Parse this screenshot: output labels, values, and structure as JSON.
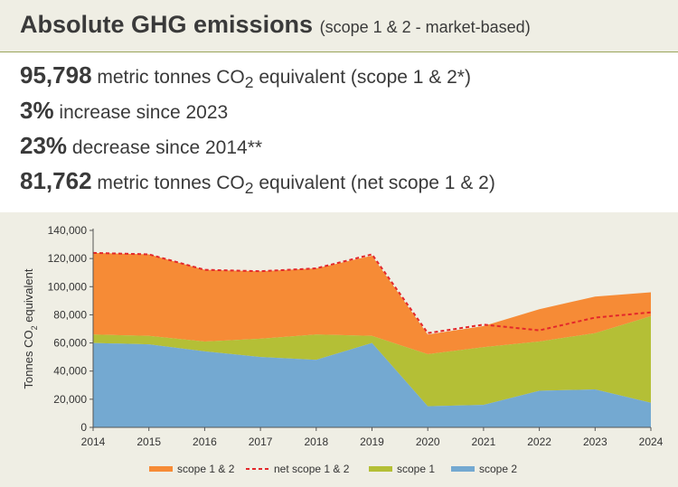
{
  "header": {
    "title": "Absolute GHG emissions",
    "subtitle": "(scope 1 & 2 - market-based)"
  },
  "stats": [
    {
      "value": "95,798",
      "pre": "metric tonnes CO",
      "sub": "2",
      "post": " equivalent (scope 1 & 2*)"
    },
    {
      "value": "3%",
      "pre": "increase since 2023",
      "sub": "",
      "post": ""
    },
    {
      "value": "23%",
      "pre": "decrease since 2014**",
      "sub": "",
      "post": ""
    },
    {
      "value": "81,762",
      "pre": "metric tonnes CO",
      "sub": "2",
      "post": " equivalent (net scope 1 & 2)"
    }
  ],
  "colors": {
    "scope12": "#f68b36",
    "net": "#e3272b",
    "scope1": "#b4bf36",
    "scope2": "#74a9d1",
    "panel": "#efeee4"
  },
  "chart_data": {
    "type": "area",
    "x": [
      "2014",
      "2015",
      "2016",
      "2017",
      "2018",
      "2019",
      "2020",
      "2021",
      "2022",
      "2023",
      "2024"
    ],
    "ylabel_pre": "Tonnes CO",
    "ylabel_sub": "2",
    "ylabel_post": " equivalent",
    "ylim": [
      0,
      140000
    ],
    "yticks": [
      "0",
      "20,000",
      "40,000",
      "60,000",
      "80,000",
      "100,000",
      "120,000",
      "140,000"
    ],
    "grid": false,
    "legend_position": "bottom",
    "series": [
      {
        "name": "scope 1 & 2",
        "style": "area",
        "values": [
          124000,
          123000,
          112000,
          111000,
          113000,
          122000,
          66000,
          72000,
          84000,
          93000,
          96000
        ]
      },
      {
        "name": "net scope 1 & 2",
        "style": "dashed-line",
        "values": [
          124000,
          123000,
          112000,
          111000,
          113000,
          123000,
          67000,
          73000,
          69000,
          78000,
          81762
        ]
      },
      {
        "name": "scope 1",
        "style": "area",
        "values": [
          66000,
          65000,
          61000,
          63000,
          66000,
          65000,
          52000,
          57000,
          61000,
          67000,
          79000
        ]
      },
      {
        "name": "scope 2",
        "style": "area",
        "values": [
          60000,
          59000,
          54000,
          50000,
          48000,
          60000,
          15000,
          16000,
          26000,
          27000,
          17500
        ]
      }
    ]
  }
}
